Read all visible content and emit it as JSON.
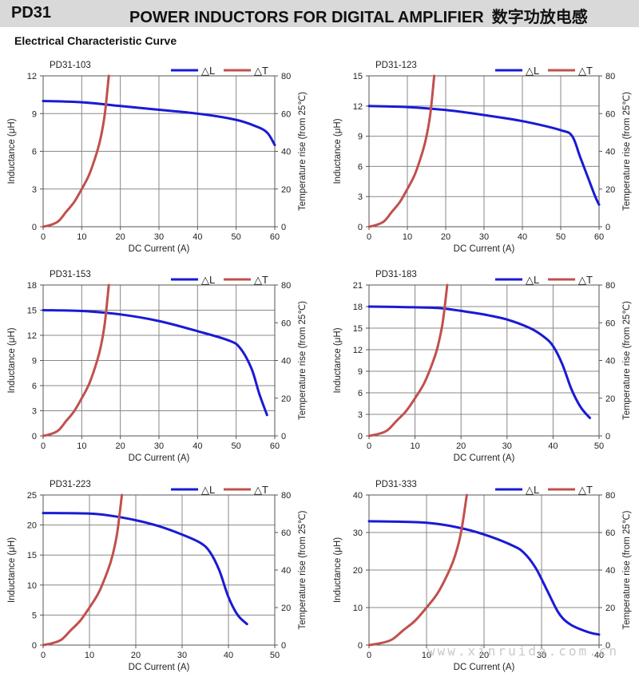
{
  "header": {
    "code": "PD31",
    "title": "POWER INDUCTORS FOR DIGITAL AMPLIFIER",
    "title_cn": "数字功放电感"
  },
  "section_title": "Electrical Characteristic Curve",
  "watermark": "www.xinruida.com.cn",
  "colors": {
    "inductance": "#1a1ad4",
    "temperature": "#c0504d",
    "grid": "#888888",
    "axis": "#555555"
  },
  "chart_data": [
    {
      "type": "line",
      "title": "PD31-103",
      "xlabel": "DC Current (A)",
      "ylabel": "Inductance (μH)",
      "y2label": "Temperature rise (from 25℃)",
      "xlim": [
        0,
        60
      ],
      "xticks": [
        0,
        10,
        20,
        30,
        40,
        50,
        60
      ],
      "ylim": [
        0,
        12
      ],
      "yticks": [
        0,
        3,
        6,
        9,
        12
      ],
      "y2lim": [
        0,
        80
      ],
      "y2ticks": [
        0,
        20,
        40,
        60,
        80
      ],
      "legend": [
        "△L",
        "△T"
      ],
      "legend_position": "top-right",
      "grid": true,
      "series": [
        {
          "name": "△L",
          "axis": "left",
          "x": [
            0,
            10,
            20,
            30,
            40,
            50,
            55,
            58,
            60
          ],
          "y": [
            10.0,
            9.9,
            9.6,
            9.3,
            9.0,
            8.5,
            8.0,
            7.5,
            6.5
          ]
        },
        {
          "name": "△T",
          "axis": "right",
          "x": [
            0,
            2,
            4,
            6,
            8,
            10,
            12,
            14,
            15,
            16,
            17
          ],
          "y": [
            0,
            1,
            3,
            8,
            13,
            20,
            28,
            40,
            48,
            60,
            80
          ]
        }
      ]
    },
    {
      "type": "line",
      "title": "PD31-123",
      "xlabel": "DC Current (A)",
      "ylabel": "Inductance (μH)",
      "y2label": "Temperature rise (from 25℃)",
      "xlim": [
        0,
        60
      ],
      "xticks": [
        0,
        10,
        20,
        30,
        40,
        50,
        60
      ],
      "ylim": [
        0,
        15
      ],
      "yticks": [
        0,
        3,
        6,
        9,
        12,
        15
      ],
      "y2lim": [
        0,
        80
      ],
      "y2ticks": [
        0,
        20,
        40,
        60,
        80
      ],
      "legend": [
        "△L",
        "△T"
      ],
      "legend_position": "top-right",
      "grid": true,
      "series": [
        {
          "name": "△L",
          "axis": "left",
          "x": [
            0,
            10,
            20,
            30,
            40,
            50,
            53,
            55,
            57,
            59,
            60
          ],
          "y": [
            12.0,
            11.9,
            11.6,
            11.1,
            10.5,
            9.6,
            9.0,
            7.0,
            5.0,
            3.0,
            2.2
          ]
        },
        {
          "name": "△T",
          "axis": "right",
          "x": [
            0,
            2,
            4,
            6,
            8,
            10,
            12,
            14,
            15,
            16,
            17
          ],
          "y": [
            0,
            1,
            3,
            8,
            13,
            20,
            28,
            40,
            48,
            60,
            80
          ]
        }
      ]
    },
    {
      "type": "line",
      "title": "PD31-153",
      "xlabel": "DC Current (A)",
      "ylabel": "Inductance (μH)",
      "y2label": "Temperature rise (from 25℃)",
      "xlim": [
        0,
        60
      ],
      "xticks": [
        0,
        10,
        20,
        30,
        40,
        50,
        60
      ],
      "ylim": [
        0,
        18
      ],
      "yticks": [
        0,
        3,
        6,
        9,
        12,
        15,
        18
      ],
      "y2lim": [
        0,
        80
      ],
      "y2ticks": [
        0,
        20,
        40,
        60,
        80
      ],
      "legend": [
        "△L",
        "△T"
      ],
      "legend_position": "top-right",
      "grid": true,
      "series": [
        {
          "name": "△L",
          "axis": "left",
          "x": [
            0,
            10,
            20,
            30,
            40,
            48,
            51,
            54,
            56,
            58
          ],
          "y": [
            15.0,
            14.9,
            14.5,
            13.7,
            12.5,
            11.4,
            10.5,
            8.0,
            5.0,
            2.5
          ]
        },
        {
          "name": "△T",
          "axis": "right",
          "x": [
            0,
            2,
            4,
            6,
            8,
            10,
            12,
            14,
            15,
            16,
            17
          ],
          "y": [
            0,
            1,
            3,
            8,
            13,
            20,
            28,
            40,
            48,
            60,
            80
          ]
        }
      ]
    },
    {
      "type": "line",
      "title": "PD31-183",
      "xlabel": "DC Current (A)",
      "ylabel": "Inductance (μH)",
      "y2label": "Temperature rise (from 25℃)",
      "xlim": [
        0,
        50
      ],
      "xticks": [
        0,
        10,
        20,
        30,
        40,
        50
      ],
      "ylim": [
        0,
        21
      ],
      "yticks": [
        0,
        3,
        6,
        9,
        12,
        15,
        18,
        21
      ],
      "y2lim": [
        0,
        80
      ],
      "y2ticks": [
        0,
        20,
        40,
        60,
        80
      ],
      "legend": [
        "△L",
        "△T"
      ],
      "legend_position": "top-right",
      "grid": true,
      "series": [
        {
          "name": "△L",
          "axis": "left",
          "x": [
            0,
            10,
            15,
            20,
            25,
            30,
            35,
            38,
            40,
            42,
            44,
            46,
            48
          ],
          "y": [
            18.0,
            17.9,
            17.8,
            17.4,
            16.9,
            16.2,
            15.0,
            13.8,
            12.5,
            10.0,
            6.5,
            4.0,
            2.5
          ]
        },
        {
          "name": "△T",
          "axis": "right",
          "x": [
            0,
            2,
            4,
            6,
            8,
            10,
            12,
            14,
            15,
            16,
            17
          ],
          "y": [
            0,
            1,
            3,
            8,
            13,
            20,
            28,
            40,
            48,
            60,
            80
          ]
        }
      ]
    },
    {
      "type": "line",
      "title": "PD31-223",
      "xlabel": "DC Current (A)",
      "ylabel": "Inductance (μH)",
      "y2label": "Temperature rise (from 25℃)",
      "xlim": [
        0,
        50
      ],
      "xticks": [
        0,
        10,
        20,
        30,
        40,
        50
      ],
      "ylim": [
        0,
        25
      ],
      "yticks": [
        0,
        5,
        10,
        15,
        20,
        25
      ],
      "y2lim": [
        0,
        80
      ],
      "y2ticks": [
        0,
        20,
        40,
        60,
        80
      ],
      "legend": [
        "△L",
        "△T"
      ],
      "legend_position": "top-right",
      "grid": true,
      "series": [
        {
          "name": "△L",
          "axis": "left",
          "x": [
            0,
            10,
            15,
            20,
            25,
            30,
            34,
            36,
            38,
            40,
            42,
            44
          ],
          "y": [
            22.0,
            21.9,
            21.5,
            20.8,
            19.8,
            18.4,
            17.0,
            15.5,
            12.5,
            8.0,
            5.0,
            3.5
          ]
        },
        {
          "name": "△T",
          "axis": "right",
          "x": [
            0,
            2,
            4,
            6,
            8,
            10,
            12,
            14,
            15,
            16,
            17
          ],
          "y": [
            0,
            1,
            3,
            8,
            13,
            20,
            28,
            40,
            48,
            60,
            80
          ]
        }
      ]
    },
    {
      "type": "line",
      "title": "PD31-333",
      "xlabel": "DC Current (A)",
      "ylabel": "Inductance (μH)",
      "y2label": "Temperature rise (from 25℃)",
      "xlim": [
        0,
        40
      ],
      "xticks": [
        0,
        10,
        20,
        30,
        40
      ],
      "ylim": [
        0,
        40
      ],
      "yticks": [
        0,
        10,
        20,
        30,
        40
      ],
      "y2lim": [
        0,
        80
      ],
      "y2ticks": [
        0,
        20,
        40,
        60,
        80
      ],
      "legend": [
        "△L",
        "△T"
      ],
      "legend_position": "top-right",
      "grid": true,
      "series": [
        {
          "name": "△L",
          "axis": "left",
          "x": [
            0,
            5,
            10,
            15,
            20,
            25,
            27,
            29,
            31,
            33,
            35,
            38,
            40
          ],
          "y": [
            33.0,
            32.9,
            32.6,
            31.5,
            29.5,
            26.5,
            24.5,
            20.5,
            14.5,
            8.5,
            5.5,
            3.5,
            2.8
          ]
        },
        {
          "name": "△T",
          "axis": "right",
          "x": [
            0,
            2,
            4,
            6,
            8,
            10,
            12,
            14,
            15,
            16,
            17
          ],
          "y": [
            0,
            1,
            3,
            8,
            13,
            20,
            28,
            40,
            48,
            60,
            80
          ]
        }
      ]
    }
  ]
}
